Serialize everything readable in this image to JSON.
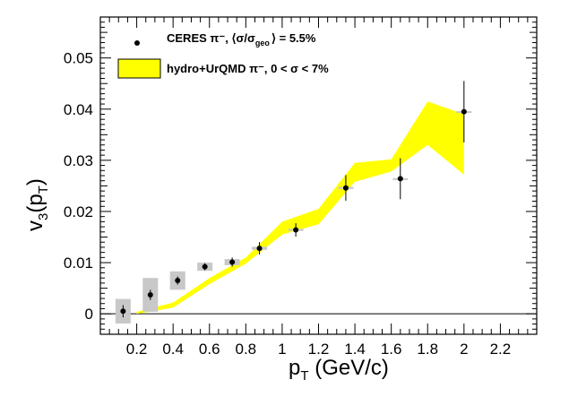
{
  "chart_data": {
    "type": "scatter",
    "title": "",
    "xlabel": {
      "main": "p",
      "sub": "T",
      "suffix": " (GeV/c)"
    },
    "ylabel": {
      "main": "v",
      "sub3": "3",
      "mid": "(p",
      "sub": "T",
      "suffix": ")"
    },
    "xlim": [
      0.0,
      2.4
    ],
    "ylim": [
      -0.004,
      0.058
    ],
    "x_ticks": [
      0.2,
      0.4,
      0.6,
      0.8,
      1,
      1.2,
      1.4,
      1.6,
      1.8,
      2,
      2.2
    ],
    "x_tick_labels": [
      "0.2",
      "0.4",
      "0.6",
      "0.8",
      "1",
      "1.2",
      "1.4",
      "1.6",
      "1.8",
      "2",
      "2.2"
    ],
    "y_ticks": [
      0,
      0.01,
      0.02,
      0.03,
      0.04,
      0.05
    ],
    "y_tick_labels": [
      "0",
      "0.01",
      "0.02",
      "0.03",
      "0.04",
      "0.05"
    ],
    "zero_line": true,
    "legend": {
      "placement": "top-left",
      "entries": [
        {
          "label": "CERES π⁻, ⟨σ/σ",
          "sub": "geo",
          "label_end": "⟩ = 5.5%",
          "style": "marker"
        },
        {
          "label": "hydro+UrQMD π⁻, 0 < σ < 7%",
          "style": "band"
        }
      ]
    },
    "series": [
      {
        "name": "CERES π-",
        "type": "scatter",
        "color": "#000000",
        "x": [
          0.125,
          0.275,
          0.425,
          0.575,
          0.725,
          0.875,
          1.075,
          1.35,
          1.65,
          2.0
        ],
        "y": [
          0.0005,
          0.0037,
          0.0065,
          0.0092,
          0.0101,
          0.0128,
          0.0164,
          0.0246,
          0.0264,
          0.0395
        ],
        "stat_err": [
          0.0012,
          0.001,
          0.0008,
          0.0007,
          0.0009,
          0.0012,
          0.0013,
          0.0025,
          0.004,
          0.006
        ],
        "sys_err": [
          0.0024,
          0.0033,
          0.0018,
          0.0008,
          0.0006,
          0.0003,
          0.0002,
          0.0002,
          0.0001,
          0.0001
        ],
        "sys_color": "#c8c8c8"
      },
      {
        "name": "hydro+UrQMD π-",
        "type": "area",
        "color": "#ffff00",
        "x": [
          0.2,
          0.4,
          0.6,
          0.8,
          1.0,
          1.2,
          1.4,
          1.6,
          1.8,
          2.0
        ],
        "low": [
          0.0,
          0.0012,
          0.0058,
          0.0098,
          0.0155,
          0.0175,
          0.0258,
          0.0278,
          0.033,
          0.0272
        ],
        "high": [
          0.0004,
          0.0022,
          0.007,
          0.011,
          0.018,
          0.0205,
          0.0295,
          0.0302,
          0.0415,
          0.039
        ]
      }
    ]
  }
}
